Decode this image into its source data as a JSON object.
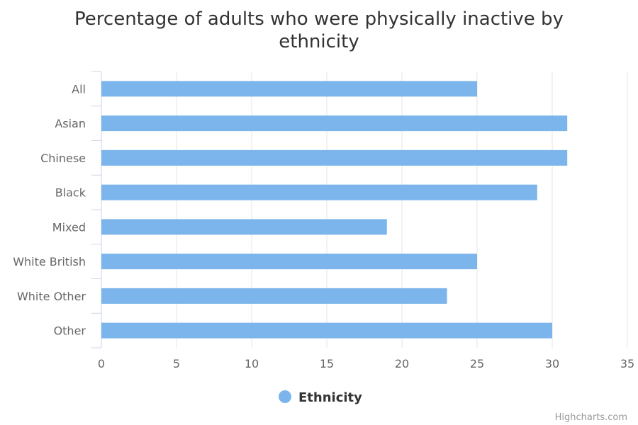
{
  "chart_data": {
    "type": "bar",
    "orientation": "horizontal",
    "title_lines": [
      "Percentage of adults who were physically inactive by",
      "ethnicity"
    ],
    "categories": [
      "All",
      "Asian",
      "Chinese",
      "Black",
      "Mixed",
      "White British",
      "White Other",
      "Other"
    ],
    "series": [
      {
        "name": "Ethnicity",
        "values": [
          25,
          31,
          31,
          29,
          19,
          25,
          23,
          30
        ]
      }
    ],
    "xlim": [
      0,
      35
    ],
    "x_ticks": [
      "0",
      "5",
      "10",
      "15",
      "20",
      "25",
      "30",
      "35"
    ],
    "grid": true,
    "legend_position": "bottom-center",
    "bar_color": "#7cb5ec",
    "credits": "Highcharts.com"
  }
}
